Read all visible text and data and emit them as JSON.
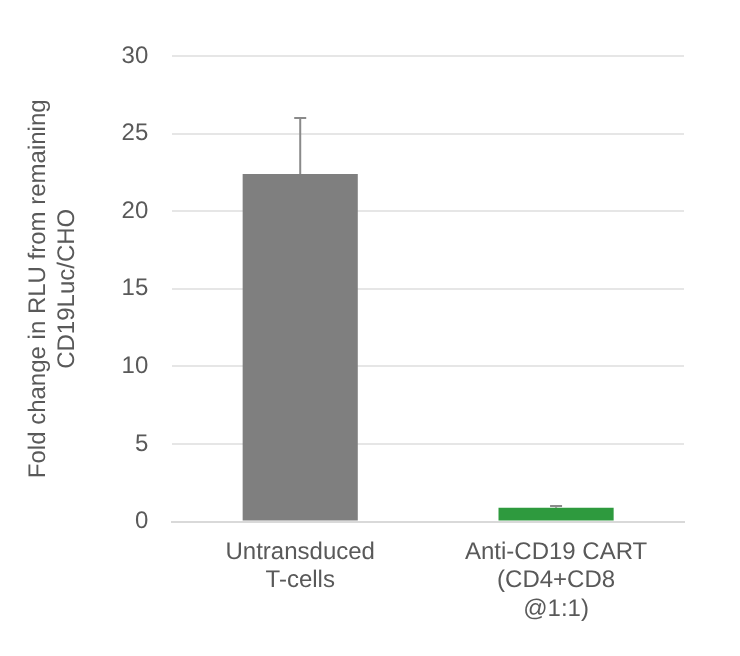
{
  "chart_data": {
    "type": "bar",
    "ylabel": "Fold change in RLU from remaining\nCD19Luc/CHO",
    "categories": [
      "Untransduced\nT-cells",
      "Anti-CD19 CART\n(CD4+CD8\n@1:1)"
    ],
    "values": [
      22.4,
      0.9
    ],
    "colors": [
      "#7f7f7f",
      "#2e9a3e"
    ],
    "errors": [
      [
        22.4,
        26
      ],
      [
        0.9,
        1.0
      ]
    ],
    "ylim": [
      0,
      30
    ],
    "yticks": [
      0,
      5,
      10,
      15,
      20,
      25,
      30
    ],
    "grid": "y",
    "legend": false
  }
}
